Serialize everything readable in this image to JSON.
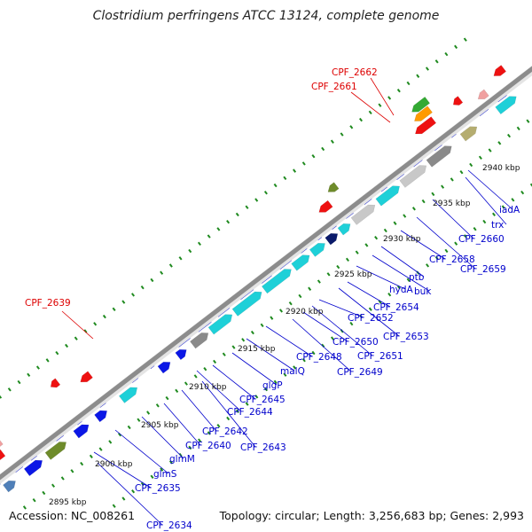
{
  "title": "Clostridium perfringens ATCC 13124, complete genome",
  "footer": {
    "accession": "Accession: NC_008261",
    "summary": "Topology: circular; Length: 3,256,683 bp; Genes: 2,993"
  },
  "colors": {
    "backbone": "#8c8c8c",
    "tick": "#1f8a1f",
    "label_blue": "#0000cc",
    "label_red": "#dd0000",
    "gene_blue": "#0b17e6",
    "gene_cyan": "#1ed0d8",
    "gene_red": "#ee1111",
    "gene_olive": "#6e8b2a",
    "gene_gray": "#8a8a8a",
    "gene_lightgray": "#c8c8c8",
    "gene_khaki": "#b5ad70",
    "gene_steel": "#4f7fb8",
    "gene_pink": "#f0a0a0",
    "gene_green": "#33aa33",
    "gene_orange": "#ff9a00",
    "gene_navy": "#0a1a6a"
  },
  "kbp_labels": [
    "2895 kbp",
    "2900 kbp",
    "2905 kbp",
    "2910 kbp",
    "2915 kbp",
    "2920 kbp",
    "2925 kbp",
    "2930 kbp",
    "2935 kbp",
    "2940 kbp"
  ],
  "gene_labels_blue": [
    "CPF_2634",
    "CPF_2635",
    "glmS",
    "glmM",
    "CPF_2640",
    "CPF_2642",
    "CPF_2643",
    "CPF_2644",
    "CPF_2645",
    "glgP",
    "malQ",
    "CPF_2648",
    "CPF_2649",
    "CPF_2650",
    "CPF_2651",
    "CPF_2652",
    "CPF_2653",
    "CPF_2654",
    "hydA",
    "buk",
    "ptb",
    "CPF_2658",
    "CPF_2659",
    "CPF_2660",
    "trx",
    "iadA"
  ],
  "gene_labels_red": [
    "CPF_2639",
    "CPF_2661",
    "CPF_2662"
  ],
  "gene_blocks": [
    {
      "color": "gene_blue",
      "count": 28
    },
    {
      "color": "gene_cyan",
      "count": 14
    },
    {
      "color": "gene_red",
      "count": 9
    },
    {
      "color": "gene_olive",
      "count": 2
    }
  ]
}
